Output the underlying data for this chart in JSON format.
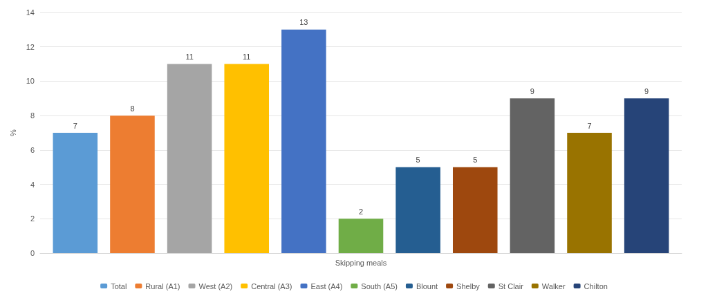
{
  "chart_data": {
    "type": "bar",
    "ylabel": "%",
    "categories": [
      "Skipping meals"
    ],
    "series": [
      {
        "name": "Total",
        "color": "#5b9bd5",
        "values": [
          7
        ]
      },
      {
        "name": "Rural (A1)",
        "color": "#ed7d31",
        "values": [
          8
        ]
      },
      {
        "name": "West (A2)",
        "color": "#a5a5a5",
        "values": [
          11
        ]
      },
      {
        "name": "Central (A3)",
        "color": "#ffc000",
        "values": [
          11
        ]
      },
      {
        "name": "East (A4)",
        "color": "#4472c4",
        "values": [
          13
        ]
      },
      {
        "name": "South (A5)",
        "color": "#70ad47",
        "values": [
          2
        ]
      },
      {
        "name": "Blount",
        "color": "#255e91",
        "values": [
          5
        ]
      },
      {
        "name": "Shelby",
        "color": "#9e480e",
        "values": [
          5
        ]
      },
      {
        "name": "St Clair",
        "color": "#636363",
        "values": [
          9
        ]
      },
      {
        "name": "Walker",
        "color": "#997300",
        "values": [
          7
        ]
      },
      {
        "name": "Chilton",
        "color": "#264478",
        "values": [
          9
        ]
      }
    ],
    "ylim": [
      0,
      14
    ],
    "yticks": [
      0,
      2,
      4,
      6,
      8,
      10,
      12,
      14
    ],
    "grid": "y",
    "legend": "bottom",
    "data_labels": true
  }
}
